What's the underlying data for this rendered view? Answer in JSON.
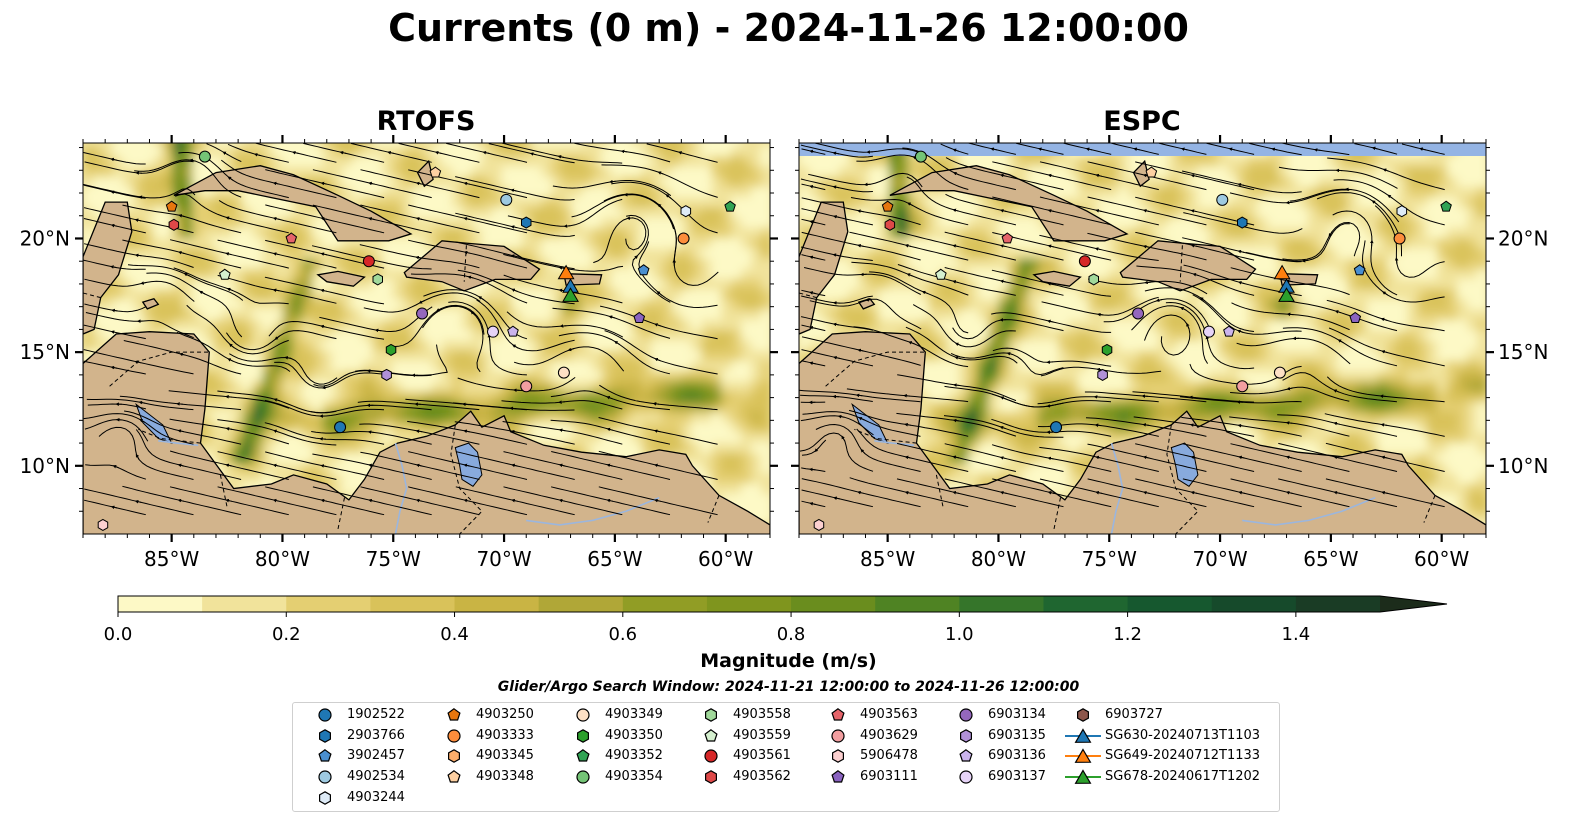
{
  "title": "Currents (0 m) - 2024-11-26 12:00:00",
  "panels": [
    {
      "title": "RTOFS"
    },
    {
      "title": "ESPC"
    }
  ],
  "axes": {
    "x_ticks": [
      "85°W",
      "80°W",
      "75°W",
      "70°W",
      "65°W",
      "60°W"
    ],
    "y_ticks": [
      "20°N",
      "15°N",
      "10°N"
    ]
  },
  "colorbar": {
    "label": "Magnitude (m/s)",
    "ticks": [
      "0.0",
      "0.2",
      "0.4",
      "0.6",
      "0.8",
      "1.0",
      "1.2",
      "1.4"
    ],
    "range": [
      0,
      1.5
    ],
    "extend": "max",
    "colors": [
      "#fdf9c6",
      "#f1e39b",
      "#e4cf72",
      "#d9c25a",
      "#c9b444",
      "#b0a737",
      "#919d25",
      "#7f951e",
      "#6a8d1e",
      "#4f8323",
      "#35752a",
      "#1f6630",
      "#16582f",
      "#164a2b",
      "#1a3c25",
      "#1c2c1b"
    ]
  },
  "search_window": "Glider/Argo Search Window: 2024-11-21 12:00:00 to 2024-11-26 12:00:00",
  "legend": {
    "columns": [
      [
        {
          "label": "1902522",
          "marker": "circle",
          "color": "#1f77b4"
        },
        {
          "label": "2903766",
          "marker": "hexagon",
          "color": "#1f77b4"
        },
        {
          "label": "3902457",
          "marker": "pentagon",
          "color": "#4a8fd0"
        },
        {
          "label": "4902534",
          "marker": "circle",
          "color": "#9ecae1"
        },
        {
          "label": "4903244",
          "marker": "hexagon",
          "color": "#deebf7"
        }
      ],
      [
        {
          "label": "4903250",
          "marker": "pentagon",
          "color": "#e6760e"
        },
        {
          "label": "4903333",
          "marker": "circle",
          "color": "#fd8d3c"
        },
        {
          "label": "4903345",
          "marker": "hexagon",
          "color": "#fdae6b"
        },
        {
          "label": "4903348",
          "marker": "pentagon",
          "color": "#fdd0a2"
        }
      ],
      [
        {
          "label": "4903349",
          "marker": "circle",
          "color": "#fde0c5"
        },
        {
          "label": "4903350",
          "marker": "hexagon",
          "color": "#2ca02c"
        },
        {
          "label": "4903352",
          "marker": "pentagon",
          "color": "#31a354"
        },
        {
          "label": "4903354",
          "marker": "circle",
          "color": "#74c476"
        }
      ],
      [
        {
          "label": "4903558",
          "marker": "hexagon",
          "color": "#a1d99b"
        },
        {
          "label": "4903559",
          "marker": "pentagon",
          "color": "#d5f0cf"
        },
        {
          "label": "4903561",
          "marker": "circle",
          "color": "#d62728"
        },
        {
          "label": "4903562",
          "marker": "hexagon",
          "color": "#de4848"
        }
      ],
      [
        {
          "label": "4903563",
          "marker": "pentagon",
          "color": "#e6646a"
        },
        {
          "label": "4903629",
          "marker": "circle",
          "color": "#f29ea0"
        },
        {
          "label": "5906478",
          "marker": "hexagon",
          "color": "#fcd0d0"
        },
        {
          "label": "6903111",
          "marker": "pentagon",
          "color": "#8a63c0"
        }
      ],
      [
        {
          "label": "6903134",
          "marker": "circle",
          "color": "#9467bd"
        },
        {
          "label": "6903135",
          "marker": "hexagon",
          "color": "#b191d8"
        },
        {
          "label": "6903136",
          "marker": "pentagon",
          "color": "#cbb4ec"
        },
        {
          "label": "6903137",
          "marker": "circle",
          "color": "#e6d3f7"
        }
      ],
      [
        {
          "label": "6903727",
          "marker": "hexagon",
          "color": "#8c564b"
        },
        {
          "label": "SG630-20240713T1103",
          "marker": "triangle",
          "color": "#1f77b4"
        },
        {
          "label": "SG649-20240712T1133",
          "marker": "triangle",
          "color": "#ff7f0e"
        },
        {
          "label": "SG678-20240617T1202",
          "marker": "triangle",
          "color": "#2ca02c"
        }
      ]
    ]
  },
  "map_data": {
    "lon_range": [
      -89.0,
      -58.0
    ],
    "lat_range": [
      7.0,
      24.2
    ],
    "colors": {
      "land": "#d2b48c",
      "lake": "#88aadd",
      "river": "#9bb6de",
      "missing": "#94b4e4"
    },
    "observations": [
      {
        "id": "1902522",
        "lon": -77.4,
        "lat": 11.7
      },
      {
        "id": "2903766",
        "lon": -69.0,
        "lat": 20.7
      },
      {
        "id": "3902457",
        "lon": -63.7,
        "lat": 18.6
      },
      {
        "id": "4902534",
        "lon": -69.9,
        "lat": 21.7
      },
      {
        "id": "4903244",
        "lon": -61.8,
        "lat": 21.2
      },
      {
        "id": "4903250",
        "lon": -85.0,
        "lat": 21.4
      },
      {
        "id": "4903333",
        "lon": -61.9,
        "lat": 20.0
      },
      {
        "id": "4903348",
        "lon": -73.1,
        "lat": 22.9
      },
      {
        "id": "4903349",
        "lon": -67.3,
        "lat": 14.1
      },
      {
        "id": "4903350",
        "lon": -75.1,
        "lat": 15.1
      },
      {
        "id": "4903352",
        "lon": -59.8,
        "lat": 21.4
      },
      {
        "id": "4903354",
        "lon": -83.5,
        "lat": 23.6
      },
      {
        "id": "4903558",
        "lon": -75.7,
        "lat": 18.2
      },
      {
        "id": "4903559",
        "lon": -82.6,
        "lat": 18.4
      },
      {
        "id": "4903561",
        "lon": -76.1,
        "lat": 19.0
      },
      {
        "id": "4903562",
        "lon": -84.9,
        "lat": 20.6
      },
      {
        "id": "4903563",
        "lon": -79.6,
        "lat": 20.0
      },
      {
        "id": "4903629",
        "lon": -69.0,
        "lat": 13.5
      },
      {
        "id": "5906478",
        "lon": -88.1,
        "lat": 7.4
      },
      {
        "id": "6903111",
        "lon": -63.9,
        "lat": 16.5
      },
      {
        "id": "6903134",
        "lon": -73.7,
        "lat": 16.7
      },
      {
        "id": "6903135",
        "lon": -75.3,
        "lat": 14.0
      },
      {
        "id": "6903136",
        "lon": -69.6,
        "lat": 15.9
      },
      {
        "id": "6903137",
        "lon": -70.5,
        "lat": 15.9
      }
    ],
    "gliders": [
      {
        "id": "SG630-20240713T1103",
        "lon": -67.0,
        "lat": 17.9
      },
      {
        "id": "SG649-20240712T1133",
        "lon": -67.2,
        "lat": 18.5
      },
      {
        "id": "SG678-20240617T1202",
        "lon": -67.0,
        "lat": 17.5
      }
    ]
  }
}
